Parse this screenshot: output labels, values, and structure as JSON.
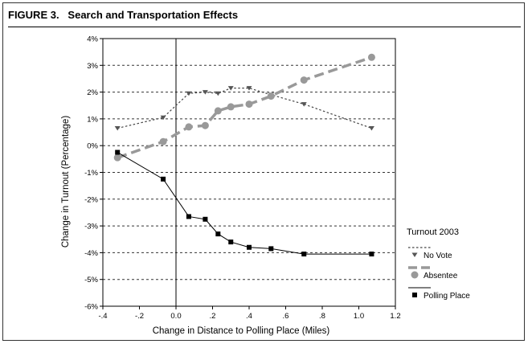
{
  "figure": {
    "label": "FIGURE 3.",
    "title": "Search and Transportation Effects"
  },
  "chart_data": {
    "type": "line",
    "title": "Search and Transportation Effects",
    "xlabel": "Change in Distance to Polling Place (Miles)",
    "ylabel": "Change in Turnout (Percentage)",
    "xlim": [
      -0.4,
      1.2
    ],
    "ylim": [
      -6,
      4
    ],
    "x_ticks": [
      -0.4,
      -0.2,
      0.0,
      0.2,
      0.4,
      0.6,
      0.8,
      1.0,
      1.2
    ],
    "x_tick_labels": [
      "-.4",
      "-.2",
      "0.0",
      ".2",
      ".4",
      ".6",
      ".8",
      "1.0",
      "1.2"
    ],
    "y_ticks": [
      4,
      3,
      2,
      1,
      0,
      -1,
      -2,
      -3,
      -4,
      -5,
      -6
    ],
    "y_tick_labels": [
      "4%",
      "3%",
      "2%",
      "1%",
      "0%",
      "-1%",
      "-2%",
      "-3%",
      "-4%",
      "-5%",
      "-6%"
    ],
    "grid": "horizontal dotted",
    "reference_line_x": 0.0,
    "legend": {
      "title": "Turnout 2003",
      "placement": "right"
    },
    "series": [
      {
        "name": "No Vote",
        "style": "dotted",
        "marker": "triangle-down",
        "color": "#555555",
        "x": [
          -0.32,
          -0.07,
          0.07,
          0.16,
          0.23,
          0.3,
          0.4,
          0.52,
          0.7,
          1.07
        ],
        "y": [
          0.65,
          1.05,
          1.95,
          2.0,
          1.95,
          2.15,
          2.15,
          1.9,
          1.55,
          0.65
        ]
      },
      {
        "name": "Absentee",
        "style": "dashed-thick",
        "marker": "circle",
        "color": "#999999",
        "x": [
          -0.32,
          -0.07,
          0.07,
          0.16,
          0.23,
          0.3,
          0.4,
          0.52,
          0.7,
          1.07
        ],
        "y": [
          -0.45,
          0.15,
          0.7,
          0.75,
          1.3,
          1.45,
          1.55,
          1.85,
          2.45,
          3.3
        ]
      },
      {
        "name": "Polling Place",
        "style": "solid",
        "marker": "square",
        "color": "#000000",
        "x": [
          -0.32,
          -0.07,
          0.07,
          0.16,
          0.23,
          0.3,
          0.4,
          0.52,
          0.7,
          1.07
        ],
        "y": [
          -0.25,
          -1.25,
          -2.65,
          -2.75,
          -3.3,
          -3.6,
          -3.8,
          -3.85,
          -4.05,
          -4.05
        ]
      }
    ]
  }
}
